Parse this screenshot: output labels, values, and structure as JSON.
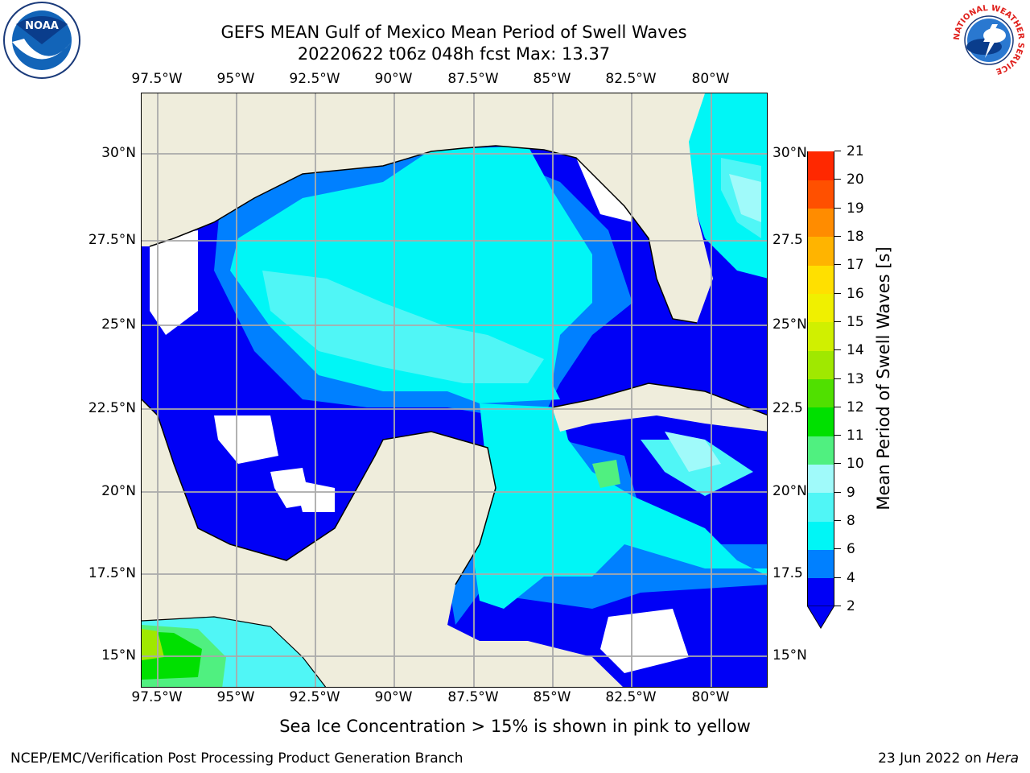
{
  "title": {
    "line1": "GEFS MEAN Gulf of Mexico Mean Period of Swell Waves",
    "line2": "20220622 t06z 048h fcst   Max: 13.37"
  },
  "map": {
    "lon_labels": [
      "97.5°W",
      "95°W",
      "92.5°W",
      "90°W",
      "87.5°W",
      "85°W",
      "82.5°W",
      "80°W"
    ],
    "lat_labels_left": [
      "30°N",
      "27.5°N",
      "25°N",
      "22.5°N",
      "20°N",
      "17.5°N",
      "15°N"
    ],
    "lat_labels_right": [
      "30°N",
      "27.5",
      "25°N",
      "22.5",
      "20°N",
      "17.5",
      "15°N"
    ],
    "colors": {
      "land": "#efeddc",
      "no_data": "#ffffff",
      "grid": "#aaaaaa"
    }
  },
  "colorbar": {
    "title": "Mean Period of Swell Waves [s]",
    "ticks": [
      "2",
      "4",
      "6",
      "8",
      "9",
      "10",
      "11",
      "12",
      "13",
      "14",
      "15",
      "16",
      "17",
      "18",
      "19",
      "20",
      "21"
    ],
    "colors": [
      "#0000f6",
      "#0080ff",
      "#00f6f6",
      "#50f6f6",
      "#a0fafa",
      "#50f080",
      "#00e000",
      "#50e000",
      "#a0e800",
      "#d0f000",
      "#f0f000",
      "#ffe000",
      "#ffb400",
      "#ff8c00",
      "#ff5000",
      "#ff2800",
      "#ff0000"
    ]
  },
  "footnote": "Sea Ice Concentration > 15% is shown in pink to yellow",
  "credit": "NCEP/EMC/Verification Post Processing Product Generation Branch",
  "date": {
    "text": "23 Jun 2022 on ",
    "host": "Hera"
  },
  "logos": {
    "noaa": "NOAA",
    "nws_ring": "NATIONAL WEATHER SERVICE"
  }
}
